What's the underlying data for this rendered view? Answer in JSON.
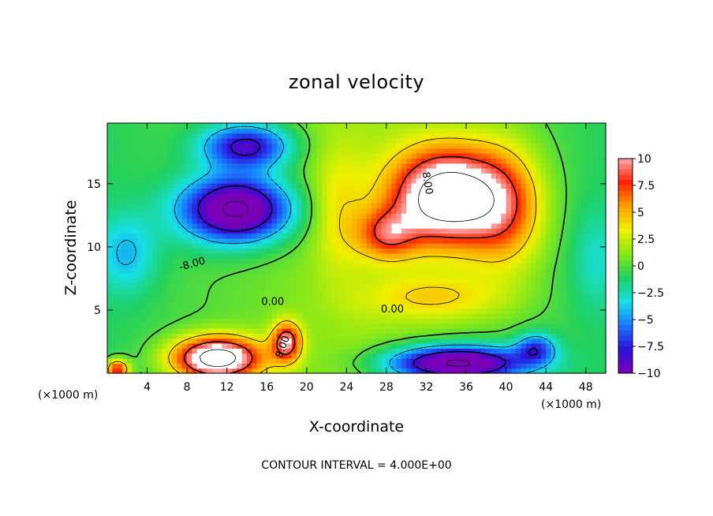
{
  "chart_data": {
    "type": "heatmap",
    "title": "zonal velocity",
    "xlabel": "X-coordinate",
    "ylabel": "Z-coordinate",
    "x_unit": "(×1000 m)",
    "x_unit_right": "(×1000 m)",
    "xlim": [
      0,
      50
    ],
    "ylim": [
      0,
      19.8
    ],
    "x_ticks": [
      "4",
      "8",
      "12",
      "16",
      "20",
      "24",
      "28",
      "32",
      "36",
      "40",
      "44",
      "48"
    ],
    "x_tick_values": [
      4,
      8,
      12,
      16,
      20,
      24,
      28,
      32,
      36,
      40,
      44,
      48
    ],
    "y_ticks": [
      "5",
      "10",
      "15"
    ],
    "y_tick_values": [
      5,
      10,
      15
    ],
    "color_range": [
      -10,
      10
    ],
    "colorbar_ticks": [
      "10",
      "7.5",
      "5",
      "2.5",
      "0",
      "−2.5",
      "−5",
      "−7.5",
      "−10"
    ],
    "colorbar_values": [
      10,
      7.5,
      5,
      2.5,
      0,
      -2.5,
      -5,
      -7.5,
      -10
    ],
    "colormap": [
      "#7a00b8",
      "#2c10d8",
      "#1878ff",
      "#18e0e6",
      "#20d060",
      "#88e818",
      "#f0f000",
      "#ffa000",
      "#ff2000",
      "#ffa8a8",
      "#ffffff"
    ],
    "contour_labels": [
      "-8.00",
      "0.00",
      "0.00",
      "8.00",
      "8.00"
    ],
    "contour_interval_text": "CONTOUR INTERVAL = 4.000E+00",
    "features": [
      {
        "x": 13,
        "z": 13,
        "value": -13,
        "sx": 5.5,
        "sz": 2.6
      },
      {
        "x": 14,
        "z": 18,
        "value": -9,
        "sx": 4.5,
        "sz": 1.8
      },
      {
        "x": 34,
        "z": 14,
        "value": 14,
        "sx": 5.5,
        "sz": 3.8
      },
      {
        "x": 28,
        "z": 11,
        "value": 6,
        "sx": 3,
        "sz": 2
      },
      {
        "x": 40,
        "z": 13,
        "value": 6,
        "sx": 4,
        "sz": 5
      },
      {
        "x": 11,
        "z": 1.2,
        "value": 14,
        "sx": 4.5,
        "sz": 1.7
      },
      {
        "x": 18,
        "z": 2.5,
        "value": 9,
        "sx": 1.5,
        "sz": 1.6
      },
      {
        "x": 35,
        "z": 0.8,
        "value": -13,
        "sx": 7,
        "sz": 1.4
      },
      {
        "x": 43,
        "z": 2,
        "value": -6,
        "sx": 2,
        "sz": 1.2
      },
      {
        "x": 2,
        "z": 9.5,
        "value": -3.5,
        "sx": 3,
        "sz": 3
      },
      {
        "x": 49,
        "z": 9,
        "value": -2,
        "sx": 2.5,
        "sz": 4
      },
      {
        "x": 1,
        "z": 0.3,
        "value": 9,
        "sx": 1.2,
        "sz": 0.8
      },
      {
        "x": 23,
        "z": 13,
        "value": 2.5,
        "sx": 2.5,
        "sz": 5
      },
      {
        "x": 33,
        "z": 6,
        "value": 3.5,
        "sx": 7,
        "sz": 1.8
      }
    ]
  }
}
